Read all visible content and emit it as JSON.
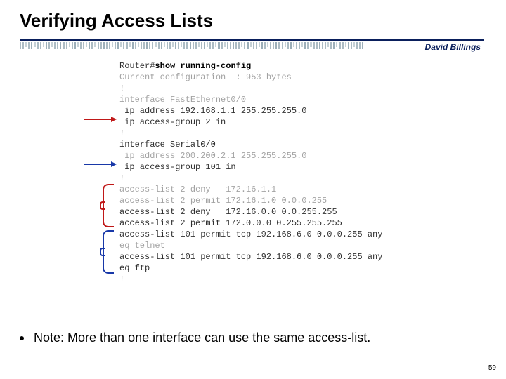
{
  "title": "Verifying Access Lists",
  "author": "David Billings",
  "code": {
    "prompt": "Router#",
    "command": "show running-config",
    "lines": [
      {
        "text": "Current configuration  : 953 bytes",
        "faint": true
      },
      {
        "text": "!"
      },
      {
        "text": "interface FastEthernet0/0",
        "faint": true
      },
      {
        "text": " ip address 192.168.1.1 255.255.255.0"
      },
      {
        "text": " ip access-group 2 in"
      },
      {
        "text": "!"
      },
      {
        "text": "interface Serial0/0"
      },
      {
        "text": " ip address 200.200.2.1 255.255.255.0",
        "faint": true
      },
      {
        "text": " ip access-group 101 in"
      },
      {
        "text": "!"
      },
      {
        "text": "access-list 2 deny   172.16.1.1",
        "faint": true
      },
      {
        "text": "access-list 2 permit 172.16.1.0 0.0.0.255",
        "faint": true
      },
      {
        "text": "access-list 2 deny   172.16.0.0 0.0.255.255"
      },
      {
        "text": "access-list 2 permit 172.0.0.0 0.255.255.255"
      },
      {
        "text": "access-list 101 permit tcp 192.168.6.0 0.0.0.255 any"
      },
      {
        "text": "eq telnet",
        "faint": true
      },
      {
        "text": "access-list 101 permit tcp 192.168.6.0 0.0.0.255 any"
      },
      {
        "text": "eq ftp"
      },
      {
        "text": "!",
        "faint": true
      }
    ]
  },
  "bullet": "Note: More than one interface can use the same access-list.",
  "page_number": "59",
  "colors": {
    "red": "#c01818",
    "blue": "#1838a8",
    "navy": "#0a1f5c"
  }
}
